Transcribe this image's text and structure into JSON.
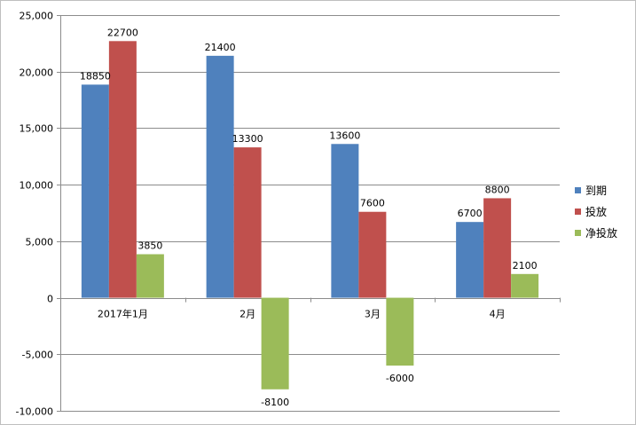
{
  "chart_data": {
    "type": "bar",
    "title": "",
    "xlabel": "",
    "ylabel": "",
    "categories": [
      "2017年1月",
      "2月",
      "3月",
      "4月"
    ],
    "series": [
      {
        "name": "到期",
        "values": [
          18850,
          21400,
          13600,
          6700
        ],
        "color": "#4f81bd"
      },
      {
        "name": "投放",
        "values": [
          22700,
          13300,
          7600,
          8800
        ],
        "color": "#c0504d"
      },
      {
        "name": "净投放",
        "values": [
          3850,
          -8100,
          -6000,
          2100
        ],
        "color": "#9bbb59"
      }
    ],
    "data_labels": [
      [
        "18850",
        "21400",
        "13600",
        "6700"
      ],
      [
        "22700",
        "13300",
        "7600",
        "8800"
      ],
      [
        "3850",
        "-8100",
        "-6000",
        "2100"
      ]
    ],
    "ylim": [
      -10000,
      25000
    ],
    "yticks": [
      -10000,
      -5000,
      0,
      5000,
      10000,
      15000,
      20000,
      25000
    ],
    "ytick_labels": [
      "-10,000",
      "-5,000",
      "0",
      "5,000",
      "10,000",
      "15,000",
      "20,000",
      "25,000"
    ],
    "grid": true,
    "legend_position": "right"
  }
}
